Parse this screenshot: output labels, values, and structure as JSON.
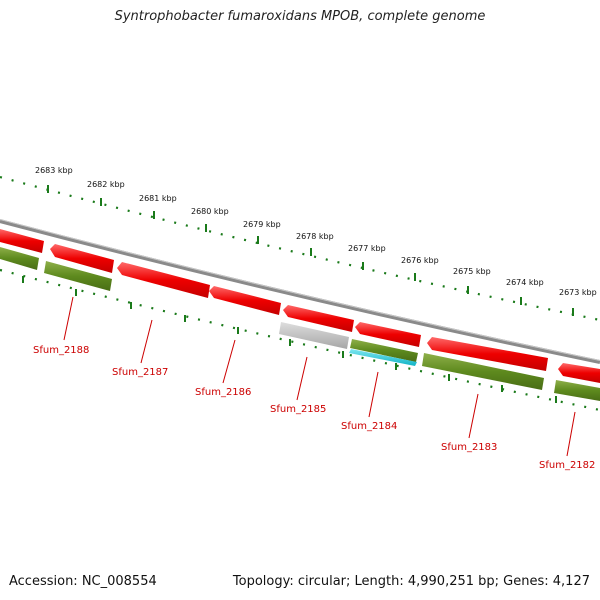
{
  "title": "Syntrophobacter fumaroxidans MPOB, complete genome",
  "footer": {
    "accession": "Accession: NC_008554",
    "topology": "Topology: circular; Length: 4,990,251 bp; Genes: 4,127"
  },
  "scale_labels": [
    "2683 kbp",
    "2682 kbp",
    "2681 kbp",
    "2680 kbp",
    "2679 kbp",
    "2678 kbp",
    "2677 kbp",
    "2676 kbp",
    "2675 kbp",
    "2674 kbp",
    "2673 kbp"
  ],
  "gene_labels": [
    "Sfum_2188",
    "Sfum_2187",
    "Sfum_2186",
    "Sfum_2185",
    "Sfum_2184",
    "Sfum_2183",
    "Sfum_2182"
  ],
  "colors": {
    "backbone": "#8a8a8a",
    "gene": "#ee0000",
    "cds": "#5e8a1e",
    "pseudo": "#b5b5b5",
    "rna": "#17c6d8",
    "tick": "#1a7a1a",
    "label": "#cc0000"
  }
}
